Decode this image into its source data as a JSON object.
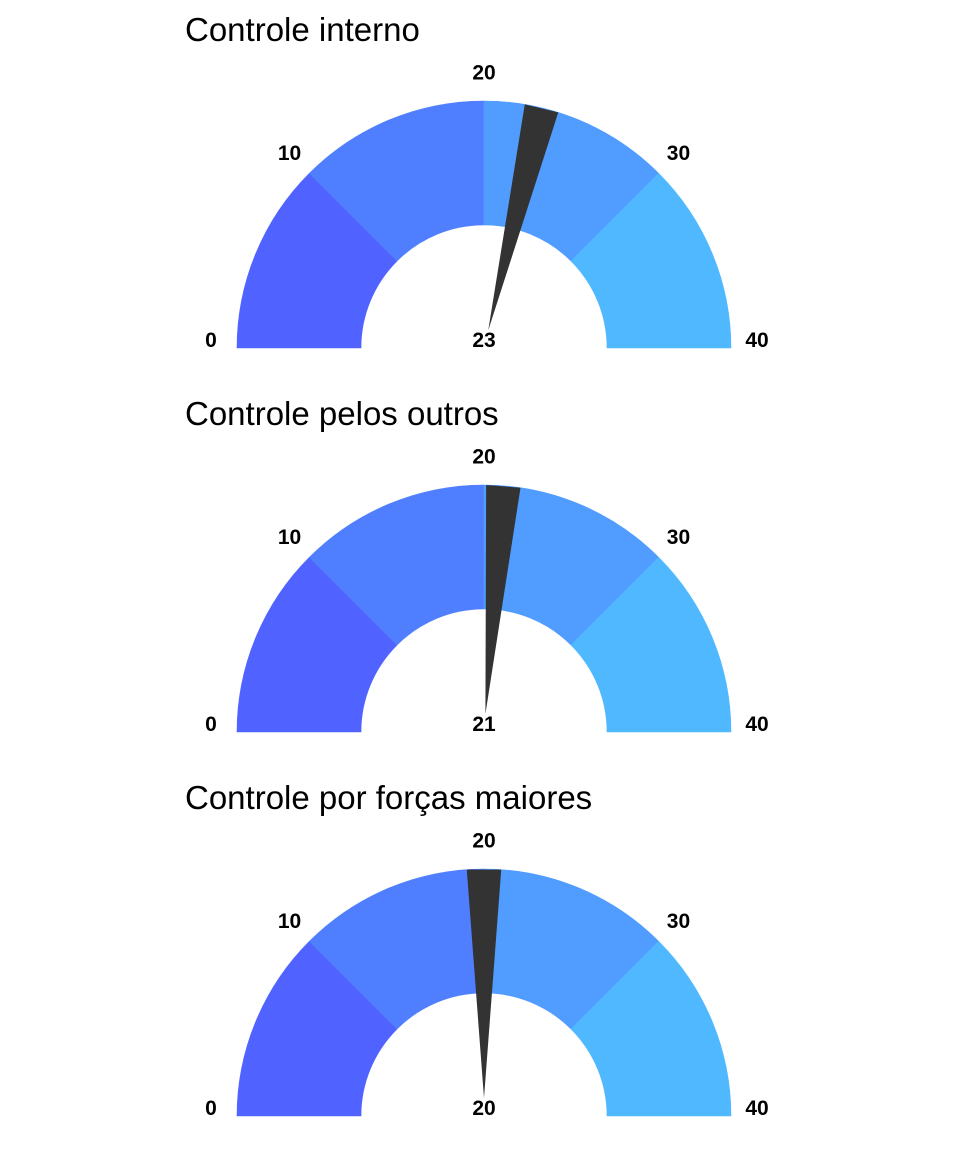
{
  "chart_data": [
    {
      "type": "gauge",
      "title": "Controle interno",
      "value": 23,
      "min": 0,
      "max": 40,
      "ticks": [
        0,
        10,
        20,
        30,
        40
      ],
      "tick_labels": [
        "0",
        "10",
        "20",
        "30",
        "40"
      ],
      "value_label": "23",
      "bands": [
        {
          "from": 0,
          "to": 10,
          "color": "#5062FF"
        },
        {
          "from": 10,
          "to": 20,
          "color": "#4F7FFF"
        },
        {
          "from": 20,
          "to": 30,
          "color": "#509CFF"
        },
        {
          "from": 30,
          "to": 40,
          "color": "#50B8FF"
        }
      ],
      "needle_color": "#333333"
    },
    {
      "type": "gauge",
      "title": "Controle pelos outros",
      "value": 21,
      "min": 0,
      "max": 40,
      "ticks": [
        0,
        10,
        20,
        30,
        40
      ],
      "tick_labels": [
        "0",
        "10",
        "20",
        "30",
        "40"
      ],
      "value_label": "21",
      "bands": [
        {
          "from": 0,
          "to": 10,
          "color": "#5062FF"
        },
        {
          "from": 10,
          "to": 20,
          "color": "#4F7FFF"
        },
        {
          "from": 20,
          "to": 30,
          "color": "#509CFF"
        },
        {
          "from": 30,
          "to": 40,
          "color": "#50B8FF"
        }
      ],
      "needle_color": "#333333"
    },
    {
      "type": "gauge",
      "title": "Controle por forças maiores",
      "value": 20,
      "min": 0,
      "max": 40,
      "ticks": [
        0,
        10,
        20,
        30,
        40
      ],
      "tick_labels": [
        "0",
        "10",
        "20",
        "30",
        "40"
      ],
      "value_label": "20",
      "bands": [
        {
          "from": 0,
          "to": 10,
          "color": "#5062FF"
        },
        {
          "from": 10,
          "to": 20,
          "color": "#4F7FFF"
        },
        {
          "from": 20,
          "to": 30,
          "color": "#509CFF"
        },
        {
          "from": 30,
          "to": 40,
          "color": "#50B8FF"
        }
      ],
      "needle_color": "#333333"
    }
  ]
}
